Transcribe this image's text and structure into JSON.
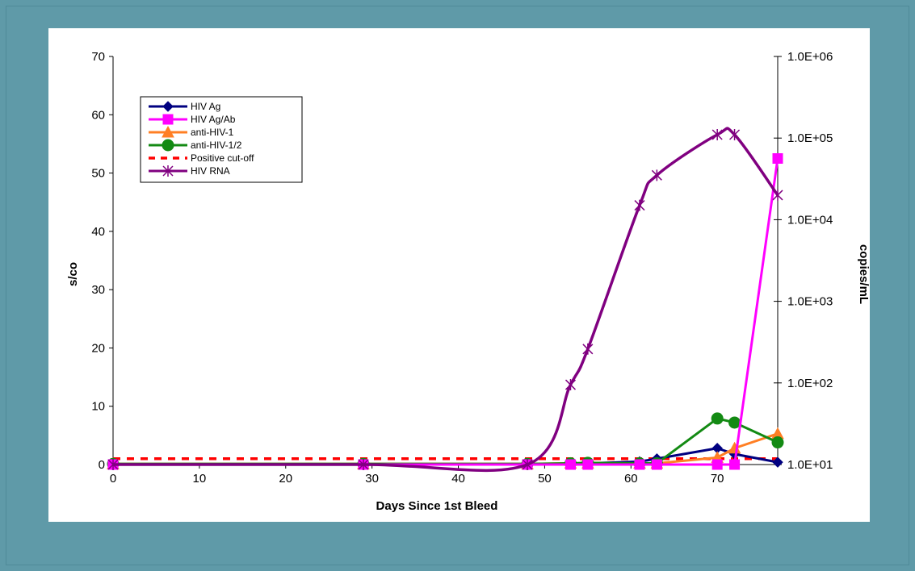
{
  "chart_data": {
    "type": "line",
    "title": "",
    "xlabel": "Days Since 1st Bleed",
    "ylabel": "s/co",
    "y2label": "copies/mL",
    "xlim": [
      0,
      77
    ],
    "ylim": [
      0,
      70
    ],
    "y2lim": [
      10,
      1000000
    ],
    "y2scale": "log",
    "x_ticks": [
      "0",
      "10",
      "20",
      "30",
      "40",
      "50",
      "60",
      "70"
    ],
    "y_ticks": [
      "0",
      "10",
      "20",
      "30",
      "40",
      "50",
      "60",
      "70"
    ],
    "y2_ticks": [
      "1.0E+01",
      "1.0E+02",
      "1.0E+03",
      "1.0E+04",
      "1.0E+05",
      "1.0E+06"
    ],
    "grid": false,
    "legend_position": "top-left",
    "series": [
      {
        "name": "HIV Ag",
        "axis": "left",
        "color": "#000080",
        "marker": "diamond",
        "smooth": false,
        "x": [
          0,
          29,
          48,
          53,
          55,
          61,
          63,
          70,
          72,
          77
        ],
        "y": [
          0.1,
          0.1,
          0.1,
          0.1,
          0.2,
          0.5,
          1.0,
          2.8,
          1.8,
          0.4
        ]
      },
      {
        "name": "HIV Ag/Ab",
        "axis": "left",
        "color": "#ff00ff",
        "marker": "square",
        "smooth": false,
        "x": [
          0,
          29,
          48,
          53,
          55,
          61,
          63,
          70,
          72,
          77
        ],
        "y": [
          0,
          0,
          0,
          0,
          0,
          0,
          0,
          0,
          0,
          52.5
        ]
      },
      {
        "name": "anti-HIV-1",
        "axis": "left",
        "color": "#ff7f24",
        "marker": "triangle",
        "smooth": false,
        "x": [
          0,
          29,
          48,
          53,
          55,
          61,
          63,
          70,
          72,
          77
        ],
        "y": [
          0.1,
          0.1,
          0.1,
          0.2,
          0.2,
          0.2,
          0.2,
          1.2,
          2.8,
          5.3
        ]
      },
      {
        "name": "anti-HIV-1/2",
        "axis": "left",
        "color": "#138a13",
        "marker": "circle",
        "smooth": false,
        "x": [
          0,
          29,
          48,
          53,
          55,
          61,
          63,
          70,
          72,
          77
        ],
        "y": [
          0.1,
          0.1,
          0.1,
          0.2,
          0.3,
          0.2,
          0.2,
          7.9,
          7.2,
          3.8
        ]
      },
      {
        "name": "Positive cut-off",
        "axis": "left",
        "color": "#ff0000",
        "marker": "none",
        "dashed": true,
        "smooth": false,
        "x": [
          0,
          77
        ],
        "y": [
          1,
          1
        ]
      },
      {
        "name": "HIV RNA",
        "axis": "right",
        "color": "#800080",
        "marker": "star",
        "smooth": true,
        "x": [
          0,
          29,
          48,
          53,
          55,
          61,
          63,
          70,
          72,
          77
        ],
        "y": [
          10,
          10,
          10,
          95,
          260,
          15000,
          35000,
          110000,
          110000,
          20000
        ]
      }
    ]
  }
}
